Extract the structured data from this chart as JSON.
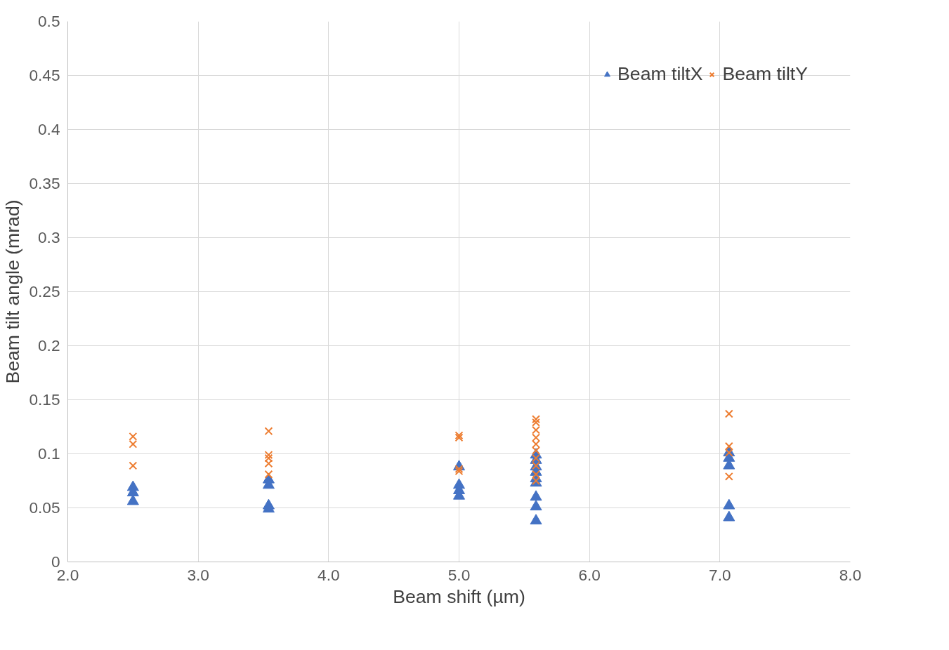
{
  "chart_data": {
    "type": "scatter",
    "xlabel": "Beam shift (µm)",
    "ylabel": "Beam tilt angle (mrad)",
    "xlim": [
      2.0,
      8.0
    ],
    "xticks": [
      {
        "value": 2,
        "label": "2.0"
      },
      {
        "value": 3,
        "label": "3.0"
      },
      {
        "value": 4,
        "label": "4.0"
      },
      {
        "value": 5,
        "label": "5.0"
      },
      {
        "value": 6,
        "label": "6.0"
      },
      {
        "value": 7,
        "label": "7.0"
      },
      {
        "value": 8,
        "label": "8.0"
      }
    ],
    "ylim": [
      0,
      0.5
    ],
    "yticks": [
      0,
      0.05,
      0.1,
      0.15,
      0.2,
      0.25,
      0.3,
      0.35,
      0.4,
      0.45,
      0.5
    ],
    "grid": true,
    "legend": "top right",
    "series": [
      {
        "name": "Beam tiltX",
        "color": "#4472c4",
        "marker": "triangle",
        "x": [
          2.5,
          2.5,
          2.5,
          3.54,
          3.54,
          3.54,
          3.54,
          5.0,
          5.0,
          5.0,
          5.0,
          5.59,
          5.59,
          5.59,
          5.59,
          5.59,
          5.59,
          5.59,
          5.59,
          5.59,
          7.07,
          7.07,
          7.07,
          7.07,
          7.07
        ],
        "values": [
          0.069,
          0.064,
          0.056,
          0.076,
          0.071,
          0.052,
          0.049,
          0.088,
          0.071,
          0.066,
          0.061,
          0.099,
          0.094,
          0.088,
          0.083,
          0.077,
          0.073,
          0.06,
          0.051,
          0.038,
          0.101,
          0.096,
          0.089,
          0.052,
          0.041
        ]
      },
      {
        "name": "Beam tiltY",
        "color": "#ed7d31",
        "marker": "cross",
        "x": [
          2.5,
          2.5,
          2.5,
          3.54,
          3.54,
          3.54,
          3.54,
          3.54,
          5.0,
          5.0,
          5.0,
          5.0,
          5.59,
          5.59,
          5.59,
          5.59,
          5.59,
          5.59,
          5.59,
          5.59,
          5.59,
          5.59,
          7.07,
          7.07,
          7.07,
          7.07
        ],
        "values": [
          0.116,
          0.109,
          0.089,
          0.121,
          0.099,
          0.096,
          0.091,
          0.081,
          0.117,
          0.115,
          0.086,
          0.084,
          0.132,
          0.129,
          0.122,
          0.115,
          0.109,
          0.103,
          0.096,
          0.089,
          0.081,
          0.075,
          0.137,
          0.107,
          0.101,
          0.079
        ]
      }
    ]
  }
}
